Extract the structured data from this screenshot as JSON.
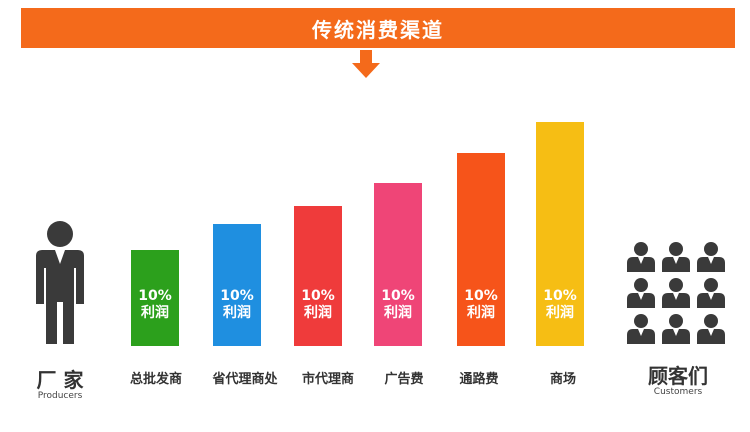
{
  "banner": {
    "title": "传统消费渠道",
    "color": "#f46a1b"
  },
  "producer": {
    "title": "厂  家",
    "subtitle": "Producers"
  },
  "customers": {
    "title": "顾客们",
    "subtitle": "Customers"
  },
  "chart_data": {
    "type": "bar",
    "categories": [
      "总批发商",
      "省代理商处",
      "市代理商",
      "广告费",
      "通路费",
      "商场"
    ],
    "bar_text": [
      {
        "pct": "10%",
        "word": "利润"
      },
      {
        "pct": "10%",
        "word": "利润"
      },
      {
        "pct": "10%",
        "word": "利润"
      },
      {
        "pct": "10%",
        "word": "利润"
      },
      {
        "pct": "10%",
        "word": "利润"
      },
      {
        "pct": "10%",
        "word": "利润"
      }
    ],
    "colors": [
      "#2ca01c",
      "#1f8fe0",
      "#ef3b3b",
      "#ef4577",
      "#f6541a",
      "#f6be14"
    ]
  }
}
